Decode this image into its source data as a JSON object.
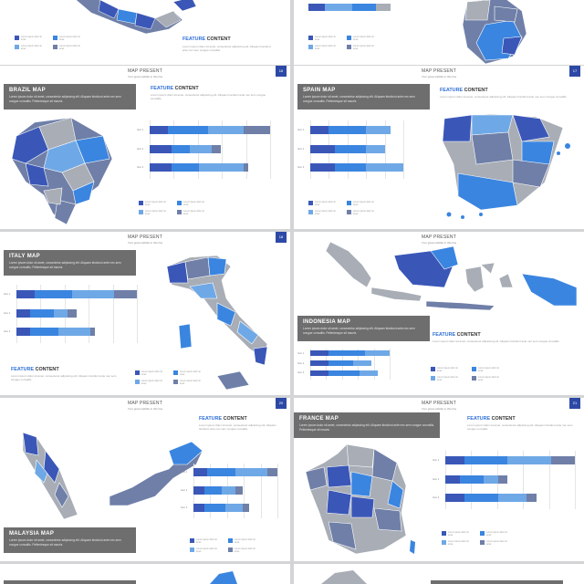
{
  "colors": {
    "dark_blue": "#3a57b8",
    "mid_blue": "#3a85e0",
    "light_blue": "#6fa8e6",
    "slate": "#6f7fa8",
    "grey": "#a8adb6",
    "badge": "#2d49a6",
    "title_box": "#6e6e6e"
  },
  "header": {
    "title": "MAP PRESENT",
    "subtitle": "Your great subtitle in this line"
  },
  "feature": {
    "word1": "FEATURE",
    "word2": "CONTENT",
    "desc": "Lorem ipsum dolor sit amet, consectetur adipiscing elit. Aliquam tincidunt ante nec sem congue convallis."
  },
  "lorem_title_desc": "Lorem ipsum dolor sit amet, consectetur adipiscing elit. Aliquam tincidunt ante nec sem congue convallis. Pellentesque sit mauris",
  "legend_text": "Lorem ipsum dolor sit amet",
  "slides": [
    {
      "id": "mexico",
      "title": "",
      "page": ""
    },
    {
      "id": "germany",
      "title": "",
      "page": ""
    },
    {
      "id": "brazil",
      "title": "BRAZIL MAP",
      "page": "16"
    },
    {
      "id": "spain",
      "title": "SPAIN MAP",
      "page": "17"
    },
    {
      "id": "italy",
      "title": "ITALY MAP",
      "page": "18"
    },
    {
      "id": "indonesia",
      "title": "INDONESIA MAP",
      "page": "19"
    },
    {
      "id": "malaysia",
      "title": "MALAYSIA MAP",
      "page": "20"
    },
    {
      "id": "france",
      "title": "FRANCE MAP",
      "page": "21"
    }
  ],
  "chart_data": [
    {
      "type": "bar",
      "slide": "brazil",
      "categories": [
        "Item 1",
        "Item 2",
        "Item 3"
      ],
      "series": [
        {
          "values": [
            4,
            5,
            5
          ]
        },
        {
          "values": [
            9,
            4,
            6
          ]
        },
        {
          "values": [
            8,
            5,
            10
          ]
        },
        {
          "values": [
            6,
            2,
            1
          ]
        }
      ]
    },
    {
      "type": "bar",
      "slide": "spain",
      "categories": [
        "Item 1",
        "Item 2",
        "Item 3"
      ],
      "series": [
        {
          "values": [
            3,
            4,
            4
          ]
        },
        {
          "values": [
            6,
            5,
            5
          ]
        },
        {
          "values": [
            4,
            3,
            6
          ]
        }
      ]
    },
    {
      "type": "bar",
      "slide": "italy",
      "categories": [
        "Item 1",
        "Item 2",
        "Item 3"
      ],
      "series": [
        {
          "values": [
            4,
            3,
            3
          ]
        },
        {
          "values": [
            8,
            5,
            6
          ]
        },
        {
          "values": [
            9,
            3,
            7
          ]
        },
        {
          "values": [
            5,
            2,
            1
          ]
        }
      ]
    },
    {
      "type": "bar",
      "slide": "indonesia",
      "categories": [
        "Item 1",
        "Item 2",
        "Item 3"
      ],
      "series": [
        {
          "values": [
            3,
            3,
            3
          ]
        },
        {
          "values": [
            6,
            4,
            5
          ]
        },
        {
          "values": [
            4,
            3,
            3
          ]
        }
      ]
    },
    {
      "type": "bar",
      "slide": "malaysia",
      "categories": [
        "Item 1",
        "Item 2",
        "Item 3"
      ],
      "series": [
        {
          "values": [
            4,
            3,
            3
          ]
        },
        {
          "values": [
            8,
            5,
            6
          ]
        },
        {
          "values": [
            9,
            4,
            5
          ]
        },
        {
          "values": [
            3,
            2,
            2
          ]
        }
      ]
    },
    {
      "type": "bar",
      "slide": "france",
      "categories": [
        "Item 1",
        "Item 2",
        "Item 3"
      ],
      "series": [
        {
          "values": [
            4,
            3,
            4
          ]
        },
        {
          "values": [
            9,
            5,
            7
          ]
        },
        {
          "values": [
            9,
            3,
            6
          ]
        },
        {
          "values": [
            5,
            2,
            2
          ]
        }
      ]
    }
  ]
}
